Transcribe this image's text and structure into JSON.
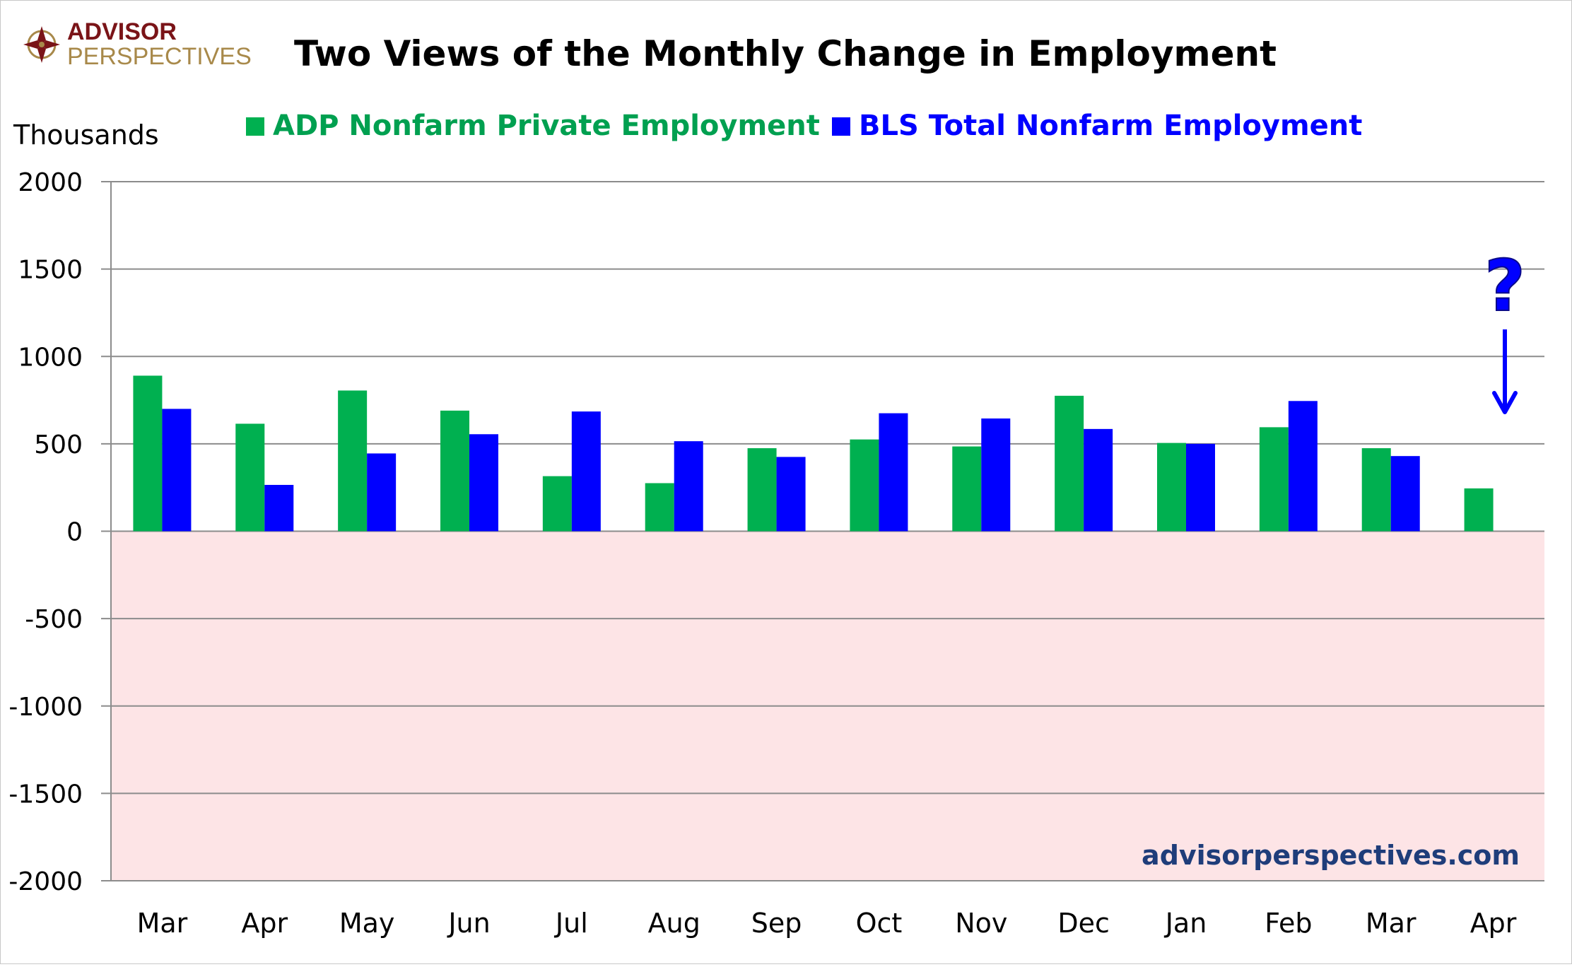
{
  "logo": {
    "line1": "ADVISOR",
    "line2": "PERSPECTIVES"
  },
  "watermark": "advisorperspectives.com",
  "colors": {
    "adp": "#00b050",
    "bls": "#0000ff",
    "negative_band": "#fde4e6",
    "grid": "#8c8c8c",
    "logo_red": "#7a1418",
    "logo_gold": "#a8894a",
    "watermark": "#1f3d7a"
  },
  "annotation": {
    "question_mark": "?",
    "arrow_icon": "down-arrow-icon"
  },
  "chart_data": {
    "type": "bar",
    "title": "Two Views of the Monthly Change in Employment",
    "ylabel": "Thousands",
    "xlabel": "",
    "ylim": [
      -2000,
      2000
    ],
    "yticks": [
      2000,
      1500,
      1000,
      500,
      0,
      -500,
      -1000,
      -1500,
      -2000
    ],
    "grid": true,
    "legend_position": "top",
    "negative_region_shaded": true,
    "categories": [
      "Mar",
      "Apr",
      "May",
      "Jun",
      "Jul",
      "Aug",
      "Sep",
      "Oct",
      "Nov",
      "Dec",
      "Jan",
      "Feb",
      "Mar",
      "Apr"
    ],
    "series": [
      {
        "name": "ADP Nonfarm Private Employment",
        "color": "#00b050",
        "values": [
          890,
          615,
          805,
          690,
          315,
          275,
          475,
          525,
          485,
          775,
          505,
          595,
          475,
          245
        ]
      },
      {
        "name": "BLS Total Nonfarm Employment",
        "color": "#0000ff",
        "values": [
          700,
          265,
          445,
          555,
          685,
          515,
          425,
          675,
          645,
          585,
          500,
          745,
          430,
          null
        ]
      }
    ]
  }
}
